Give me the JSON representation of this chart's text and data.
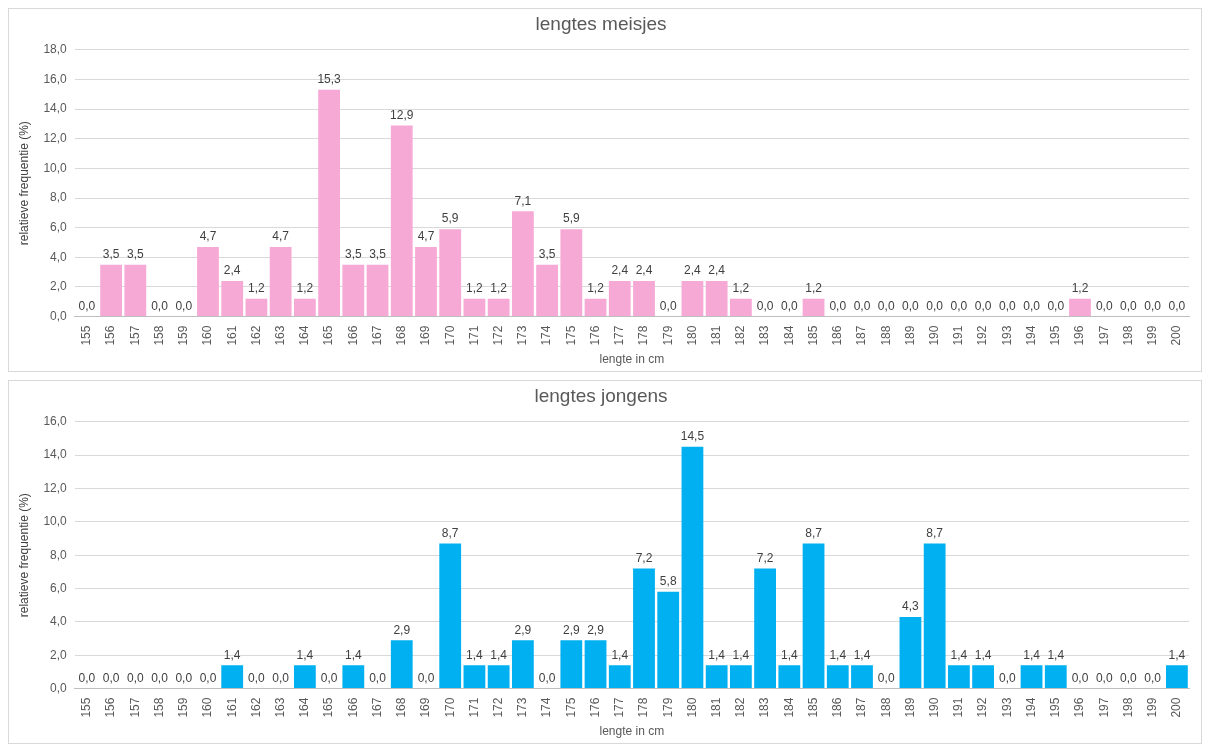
{
  "chart_data": [
    {
      "type": "bar",
      "title": "lengtes meisjes",
      "xlabel": "lengte in cm",
      "ylabel": "relatieve frequentie (%)",
      "categories": [
        "155",
        "156",
        "157",
        "158",
        "159",
        "160",
        "161",
        "162",
        "163",
        "164",
        "165",
        "166",
        "167",
        "168",
        "169",
        "170",
        "171",
        "172",
        "173",
        "174",
        "175",
        "176",
        "177",
        "178",
        "179",
        "180",
        "181",
        "182",
        "183",
        "184",
        "185",
        "186",
        "187",
        "188",
        "189",
        "190",
        "191",
        "192",
        "193",
        "194",
        "195",
        "196",
        "197",
        "198",
        "199",
        "200"
      ],
      "values": [
        0,
        3.5,
        3.5,
        0,
        0,
        4.7,
        2.4,
        1.2,
        4.7,
        1.2,
        15.3,
        3.5,
        3.5,
        12.9,
        4.7,
        5.9,
        1.2,
        1.2,
        7.1,
        3.5,
        5.9,
        1.2,
        2.4,
        2.4,
        0,
        2.4,
        2.4,
        1.2,
        0,
        0,
        1.2,
        0,
        0,
        0,
        0,
        0,
        0,
        0,
        0,
        0,
        0,
        1.2,
        0,
        0,
        0,
        0
      ],
      "value_labels": [
        "0,0",
        "3,5",
        "3,5",
        "0,0",
        "0,0",
        "4,7",
        "2,4",
        "1,2",
        "4,7",
        "1,2",
        "15,3",
        "3,5",
        "3,5",
        "12,9",
        "4,7",
        "5,9",
        "1,2",
        "1,2",
        "7,1",
        "3,5",
        "5,9",
        "1,2",
        "2,4",
        "2,4",
        "0,0",
        "2,4",
        "2,4",
        "1,2",
        "0,0",
        "0,0",
        "1,2",
        "0,0",
        "0,0",
        "0,0",
        "0,0",
        "0,0",
        "0,0",
        "0,0",
        "0,0",
        "0,0",
        "0,0",
        "1,2",
        "0,0",
        "0,0",
        "0,0",
        "0,0"
      ],
      "color": "#f7a9d6",
      "ylim": [
        0,
        18
      ],
      "yticks": [
        {
          "value": 0,
          "label": "0,0"
        },
        {
          "value": 2,
          "label": "2,0"
        },
        {
          "value": 4,
          "label": "4,0"
        },
        {
          "value": 6,
          "label": "6,0"
        },
        {
          "value": 8,
          "label": "8,0"
        },
        {
          "value": 10,
          "label": "10,0"
        },
        {
          "value": 12,
          "label": "12,0"
        },
        {
          "value": 14,
          "label": "14,0"
        },
        {
          "value": 16,
          "label": "16,0"
        },
        {
          "value": 18,
          "label": "18,0"
        }
      ],
      "grid": "y"
    },
    {
      "type": "bar",
      "title": "lengtes jongens",
      "xlabel": "lengte in cm",
      "ylabel": "relatieve frequentie (%)",
      "categories": [
        "155",
        "156",
        "157",
        "158",
        "159",
        "160",
        "161",
        "162",
        "163",
        "164",
        "165",
        "166",
        "167",
        "168",
        "169",
        "170",
        "171",
        "172",
        "173",
        "174",
        "175",
        "176",
        "177",
        "178",
        "179",
        "180",
        "181",
        "182",
        "183",
        "184",
        "185",
        "186",
        "187",
        "188",
        "189",
        "190",
        "191",
        "192",
        "193",
        "194",
        "195",
        "196",
        "197",
        "198",
        "199",
        "200"
      ],
      "values": [
        0,
        0,
        0,
        0,
        0,
        0,
        1.4,
        0,
        0,
        1.4,
        0,
        1.4,
        0,
        2.9,
        0,
        8.7,
        1.4,
        1.4,
        2.9,
        0,
        2.9,
        2.9,
        1.4,
        7.2,
        5.8,
        14.5,
        1.4,
        1.4,
        7.2,
        1.4,
        8.7,
        1.4,
        1.4,
        0,
        4.3,
        8.7,
        1.4,
        1.4,
        0,
        1.4,
        1.4,
        0,
        0,
        0,
        0,
        1.4
      ],
      "value_labels": [
        "0,0",
        "0,0",
        "0,0",
        "0,0",
        "0,0",
        "0,0",
        "1,4",
        "0,0",
        "0,0",
        "1,4",
        "0,0",
        "1,4",
        "0,0",
        "2,9",
        "0,0",
        "8,7",
        "1,4",
        "1,4",
        "2,9",
        "0,0",
        "2,9",
        "2,9",
        "1,4",
        "7,2",
        "5,8",
        "14,5",
        "1,4",
        "1,4",
        "7,2",
        "1,4",
        "8,7",
        "1,4",
        "1,4",
        "0,0",
        "4,3",
        "8,7",
        "1,4",
        "1,4",
        "0,0",
        "1,4",
        "1,4",
        "0,0",
        "0,0",
        "0,0",
        "0,0",
        "1,4"
      ],
      "color": "#00b0f0",
      "ylim": [
        0,
        16
      ],
      "yticks": [
        {
          "value": 0,
          "label": "0,0"
        },
        {
          "value": 2,
          "label": "2,0"
        },
        {
          "value": 4,
          "label": "4,0"
        },
        {
          "value": 6,
          "label": "6,0"
        },
        {
          "value": 8,
          "label": "8,0"
        },
        {
          "value": 10,
          "label": "10,0"
        },
        {
          "value": 12,
          "label": "12,0"
        },
        {
          "value": 14,
          "label": "14,0"
        },
        {
          "value": 16,
          "label": "16,0"
        }
      ],
      "grid": "y"
    }
  ]
}
